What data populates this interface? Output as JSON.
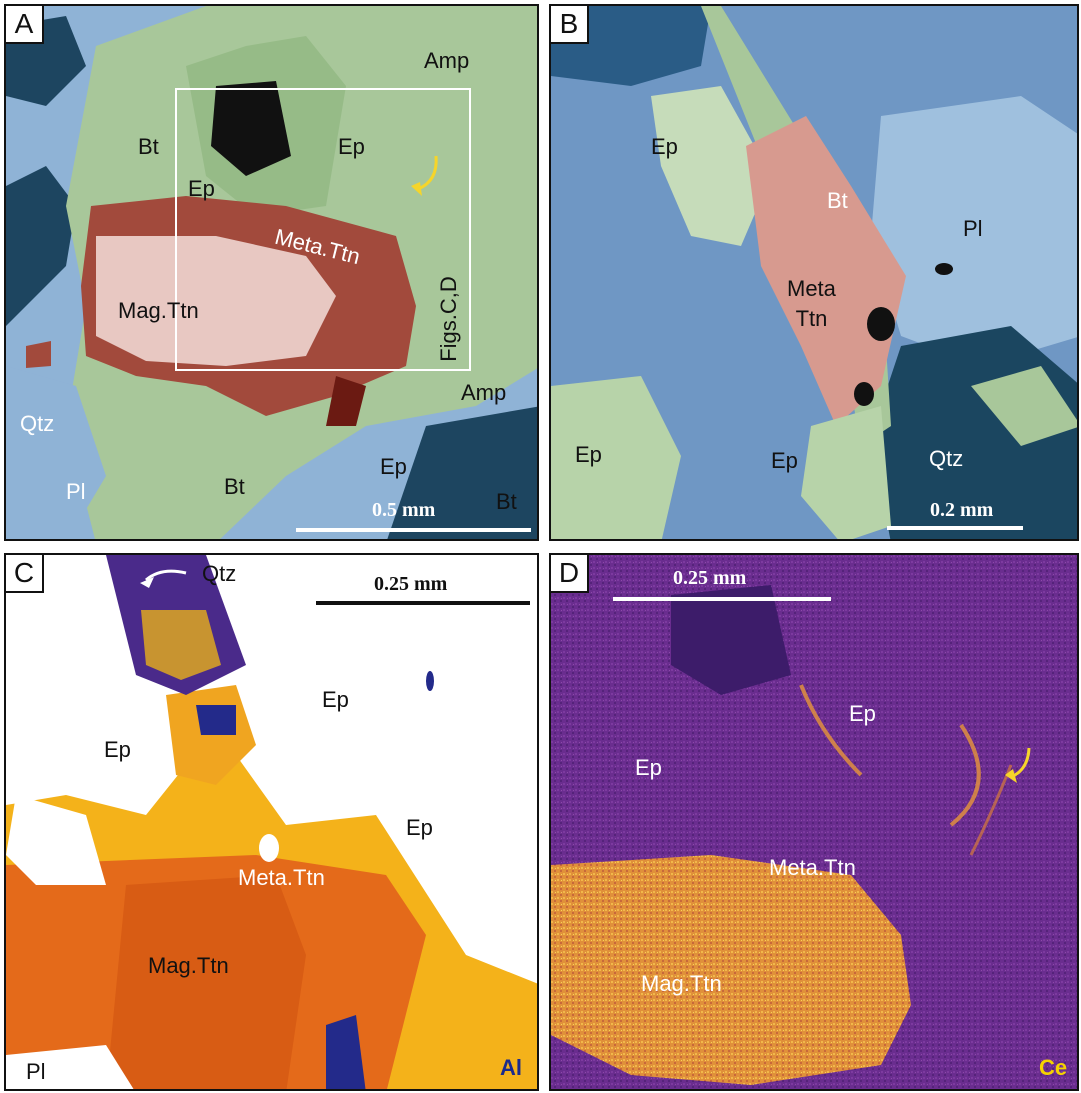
{
  "panels": {
    "a": {
      "letter": "A",
      "labels": {
        "amp1": "Amp",
        "bt1": "Bt",
        "ep1": "Ep",
        "ep2": "Ep",
        "meta": "Meta.Ttn",
        "mag": "Mag.Ttn",
        "figs": "Figs.C,D",
        "amp2": "Amp",
        "qtz": "Qtz",
        "pl": "Pl",
        "bt2": "Bt",
        "ep3": "Ep",
        "bt3": "Bt"
      },
      "scale": "0.5 mm"
    },
    "b": {
      "letter": "B",
      "labels": {
        "ep1": "Ep",
        "bt": "Bt",
        "pl": "Pl",
        "meta": "Meta\nTtn",
        "ep2": "Ep",
        "ep3": "Ep",
        "qtz": "Qtz"
      },
      "scale": "0.2 mm"
    },
    "c": {
      "letter": "C",
      "labels": {
        "qtz": "Qtz",
        "ep1": "Ep",
        "ep2": "Ep",
        "ep3": "Ep",
        "meta": "Meta.Ttn",
        "mag": "Mag.Ttn",
        "pl": "Pl"
      },
      "scale": "0.25 mm",
      "element": "Al",
      "element_color": "#1a2a8c"
    },
    "d": {
      "letter": "D",
      "labels": {
        "ep1": "Ep",
        "ep2": "Ep",
        "meta": "Meta.Ttn",
        "mag": "Mag.Ttn"
      },
      "scale": "0.25 mm",
      "element": "Ce",
      "element_color": "#f5d200"
    }
  },
  "colors": {
    "epidote_green": "#a8c79a",
    "plagioclase_blue": "#8fb3d6",
    "quartz_dark": "#15384f",
    "titanite_red": "#a24a3c",
    "arrow_yellow": "#f6d52a"
  }
}
